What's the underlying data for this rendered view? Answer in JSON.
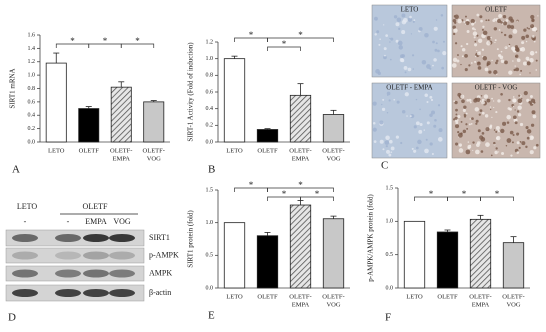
{
  "chart_data": [
    {
      "type": "bar",
      "panel": "A",
      "y_label": "SIRT1 mRNA",
      "categories": [
        [
          "LETO"
        ],
        [
          "OLETF"
        ],
        [
          "OLETF-",
          "EMPA"
        ],
        [
          "OLETF-",
          "VOG"
        ]
      ],
      "values": [
        1.18,
        0.5,
        0.82,
        0.6
      ],
      "errors": [
        0.15,
        0.03,
        0.08,
        0.02
      ],
      "colors": [
        "#ffffff",
        "#000000",
        "#9a9a9a",
        "#c8c8c8"
      ],
      "hatched": [
        false,
        false,
        true,
        false
      ],
      "ylim": [
        0,
        1.6
      ],
      "yticks": [
        {
          "value": 0,
          "label": "0.0"
        },
        {
          "value": 0.2,
          "label": "0.2"
        },
        {
          "value": 0.4,
          "label": "0.4"
        },
        {
          "value": 0.6,
          "label": "0.6"
        },
        {
          "value": 0.8,
          "label": "0.8"
        },
        {
          "value": 1.0,
          "label": "1.0"
        },
        {
          "value": 1.2,
          "label": "1.2"
        },
        {
          "value": 1.4,
          "label": "1.4"
        },
        {
          "value": 1.6,
          "label": "1.6"
        }
      ],
      "significance": [
        "*",
        "*",
        "*"
      ]
    },
    {
      "type": "bar",
      "panel": "B",
      "y_label": "SIRT-1 Activity (Fold of induction)",
      "categories": [
        [
          "LETO"
        ],
        [
          "OLETF"
        ],
        [
          "OLETF-",
          "EMPA"
        ],
        [
          "OLETF-",
          "VOG"
        ]
      ],
      "values": [
        1.0,
        0.15,
        0.56,
        0.33
      ],
      "errors": [
        0.03,
        0.01,
        0.14,
        0.05
      ],
      "colors": [
        "#ffffff",
        "#000000",
        "#9a9a9a",
        "#c8c8c8"
      ],
      "hatched": [
        false,
        false,
        true,
        false
      ],
      "ylim": [
        0,
        1.2
      ],
      "yticks": [
        {
          "value": 0,
          "label": "0.0"
        },
        {
          "value": 0.2,
          "label": "0.2"
        },
        {
          "value": 0.4,
          "label": "0.4"
        },
        {
          "value": 0.6,
          "label": "0.6"
        },
        {
          "value": 0.8,
          "label": "0.8"
        },
        {
          "value": 1.0,
          "label": "1.0"
        },
        {
          "value": 1.2,
          "label": "1.2"
        }
      ],
      "significance": [
        "*",
        "*",
        "*"
      ]
    },
    {
      "type": "bar",
      "panel": "E",
      "y_label": "SIRT1 protein (fold)",
      "categories": [
        [
          "LETO"
        ],
        [
          "OLETF"
        ],
        [
          "OLETF-",
          "EMPA"
        ],
        [
          "OLETF-",
          "VOG"
        ]
      ],
      "values": [
        1.0,
        0.8,
        1.27,
        1.06
      ],
      "errors": [
        0,
        0.05,
        0.07,
        0.04
      ],
      "colors": [
        "#ffffff",
        "#000000",
        "#9a9a9a",
        "#c8c8c8"
      ],
      "hatched": [
        false,
        false,
        true,
        false
      ],
      "ylim": [
        0,
        1.5
      ],
      "yticks": [
        {
          "value": 0,
          "label": "0.0"
        },
        {
          "value": 0.5,
          "label": "0.5"
        },
        {
          "value": 1.0,
          "label": "1.0"
        },
        {
          "value": 1.5,
          "label": "1.5"
        }
      ],
      "significance": [
        "*",
        "*",
        "*",
        "*"
      ]
    },
    {
      "type": "bar",
      "panel": "F",
      "y_label": "p-AMPK/AMPK protein (fold)",
      "categories": [
        [
          "LETO"
        ],
        [
          "OLETF"
        ],
        [
          "OLETF-",
          "EMPA"
        ],
        [
          "OLETF-",
          "VOG"
        ]
      ],
      "values": [
        1.0,
        0.84,
        1.03,
        0.68
      ],
      "errors": [
        0,
        0.03,
        0.06,
        0.09
      ],
      "colors": [
        "#ffffff",
        "#000000",
        "#9a9a9a",
        "#c8c8c8"
      ],
      "hatched": [
        false,
        false,
        true,
        false
      ],
      "ylim": [
        0,
        1.5
      ],
      "yticks": [
        {
          "value": 0,
          "label": "0.0"
        },
        {
          "value": 0.5,
          "label": "0.5"
        },
        {
          "value": 1.0,
          "label": "1.0"
        },
        {
          "value": 1.5,
          "label": "1.5"
        }
      ],
      "significance": [
        "*",
        "*",
        "*"
      ]
    }
  ],
  "micrographs": {
    "panel": "C",
    "labels": [
      "LETO",
      "OLETF",
      "OLETF - EMPA",
      "OLETF - VOG"
    ]
  },
  "blot": {
    "panel": "D",
    "groups": [
      "LETO",
      "OLETF"
    ],
    "lanes": [
      "-",
      "-",
      "EMPA",
      "VOG"
    ],
    "bands": [
      "SIRT1",
      "p-AMPK",
      "AMPK",
      "β-actin"
    ]
  }
}
